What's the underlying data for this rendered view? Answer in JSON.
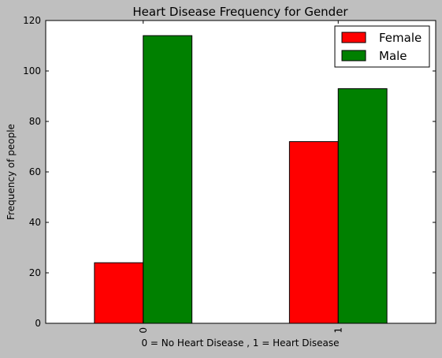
{
  "chart_data": {
    "type": "bar",
    "title": "Heart Disease Frequency for Gender",
    "xlabel": "0 = No Heart Disease , 1 = Heart Disease",
    "ylabel": "Frequency of people",
    "categories": [
      "0",
      "1"
    ],
    "series": [
      {
        "name": "Female",
        "values": [
          24,
          72
        ],
        "color": "#ff0000"
      },
      {
        "name": "Male",
        "values": [
          114,
          93
        ],
        "color": "#008000"
      }
    ],
    "ylim": [
      0,
      120
    ],
    "yticks": [
      0,
      20,
      40,
      60,
      80,
      100,
      120
    ],
    "grid": false,
    "legend_position": "top-right"
  }
}
